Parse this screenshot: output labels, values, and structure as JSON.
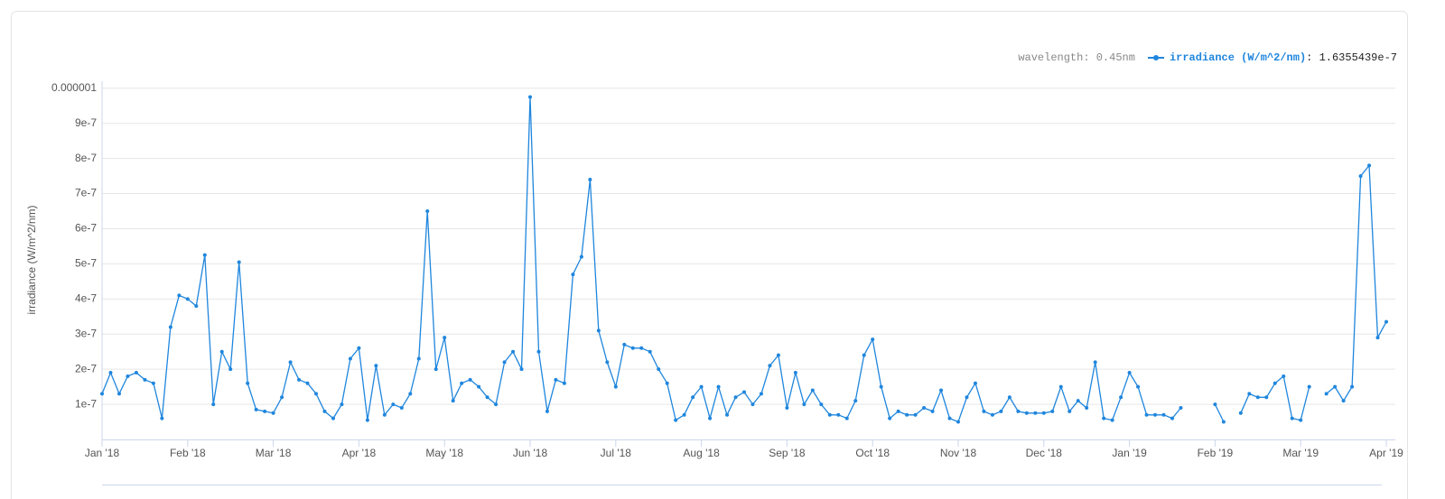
{
  "chart_data": {
    "type": "line",
    "y_axis_label": "irradiance (W/m^2/nm)",
    "readout_prefix": "wavelength: 0.45nm",
    "readout_value": ": 1.6355439e-7",
    "ylim": [
      0,
      1.02e-06
    ],
    "yticks": [
      1e-07,
      2e-07,
      3e-07,
      4e-07,
      5e-07,
      6e-07,
      7e-07,
      8e-07,
      9e-07,
      1e-06
    ],
    "grid": true,
    "markers": true,
    "categories": [
      "Jan '18",
      null,
      null,
      null,
      null,
      null,
      null,
      null,
      null,
      null,
      "Feb '18",
      null,
      null,
      null,
      null,
      null,
      null,
      null,
      null,
      null,
      "Mar '18",
      null,
      null,
      null,
      null,
      null,
      null,
      null,
      null,
      null,
      "Apr '18",
      null,
      null,
      null,
      null,
      null,
      null,
      null,
      null,
      null,
      "May '18",
      null,
      null,
      null,
      null,
      null,
      null,
      null,
      null,
      null,
      "Jun '18",
      null,
      null,
      null,
      null,
      null,
      null,
      null,
      null,
      null,
      "Jul '18",
      null,
      null,
      null,
      null,
      null,
      null,
      null,
      null,
      null,
      "Aug '18",
      null,
      null,
      null,
      null,
      null,
      null,
      null,
      null,
      null,
      "Sep '18",
      null,
      null,
      null,
      null,
      null,
      null,
      null,
      null,
      null,
      "Oct '18",
      null,
      null,
      null,
      null,
      null,
      null,
      null,
      null,
      null,
      "Nov '18",
      null,
      null,
      null,
      null,
      null,
      null,
      null,
      null,
      null,
      "Dec '18",
      null,
      null,
      null,
      null,
      null,
      null,
      null,
      null,
      null,
      "Jan '19",
      null,
      null,
      null,
      null,
      null,
      null,
      null,
      null,
      null,
      "Feb '19",
      null,
      null,
      null,
      null,
      null,
      null,
      null,
      null,
      null,
      "Mar '19",
      null,
      null,
      null,
      null,
      null,
      null,
      null,
      null,
      null,
      "Apr '19"
    ],
    "series": [
      {
        "name": "irradiance (W/m^2/nm)",
        "color": "#1f86dd",
        "values": [
          1.3e-07,
          1.9e-07,
          1.3e-07,
          1.8e-07,
          1.9e-07,
          1.7e-07,
          1.6e-07,
          6e-08,
          3.2e-07,
          4.1e-07,
          4e-07,
          3.8e-07,
          5.25e-07,
          1e-07,
          2.5e-07,
          2e-07,
          5.05e-07,
          1.6e-07,
          8.5e-08,
          8e-08,
          7.5e-08,
          1.2e-07,
          2.2e-07,
          1.7e-07,
          1.6e-07,
          1.3e-07,
          8e-08,
          6e-08,
          1e-07,
          2.3e-07,
          2.6e-07,
          5.5e-08,
          2.1e-07,
          7e-08,
          1e-07,
          9e-08,
          1.3e-07,
          2.3e-07,
          6.5e-07,
          2e-07,
          2.9e-07,
          1.1e-07,
          1.6e-07,
          1.7e-07,
          1.5e-07,
          1.2e-07,
          1e-07,
          2.2e-07,
          2.5e-07,
          2e-07,
          9.75e-07,
          2.5e-07,
          8e-08,
          1.7e-07,
          1.6e-07,
          4.7e-07,
          5.2e-07,
          7.4e-07,
          3.1e-07,
          2.2e-07,
          1.5e-07,
          2.7e-07,
          2.6e-07,
          2.6e-07,
          2.5e-07,
          2e-07,
          1.6e-07,
          5.5e-08,
          7e-08,
          1.2e-07,
          1.5e-07,
          6e-08,
          1.5e-07,
          7e-08,
          1.2e-07,
          1.35e-07,
          1e-07,
          1.3e-07,
          2.1e-07,
          2.4e-07,
          9e-08,
          1.9e-07,
          1e-07,
          1.4e-07,
          1e-07,
          7e-08,
          7e-08,
          6e-08,
          1.1e-07,
          2.4e-07,
          2.85e-07,
          1.5e-07,
          6e-08,
          8e-08,
          7e-08,
          7e-08,
          9e-08,
          8e-08,
          1.4e-07,
          6e-08,
          5e-08,
          1.2e-07,
          1.6e-07,
          8e-08,
          7e-08,
          8e-08,
          1.2e-07,
          8e-08,
          7.5e-08,
          7.5e-08,
          7.5e-08,
          8e-08,
          1.5e-07,
          8e-08,
          1.1e-07,
          9e-08,
          2.2e-07,
          6e-08,
          5.5e-08,
          1.2e-07,
          1.9e-07,
          1.5e-07,
          7e-08,
          7e-08,
          7e-08,
          6e-08,
          9e-08,
          null,
          null,
          null,
          1e-07,
          5e-08,
          null,
          7.5e-08,
          1.3e-07,
          1.2e-07,
          1.2e-07,
          1.6e-07,
          1.8e-07,
          6e-08,
          5.5e-08,
          1.5e-07,
          null,
          1.3e-07,
          1.5e-07,
          1.1e-07,
          1.5e-07,
          7.5e-07,
          7.8e-07,
          2.9e-07,
          3.35e-07
        ]
      }
    ]
  }
}
